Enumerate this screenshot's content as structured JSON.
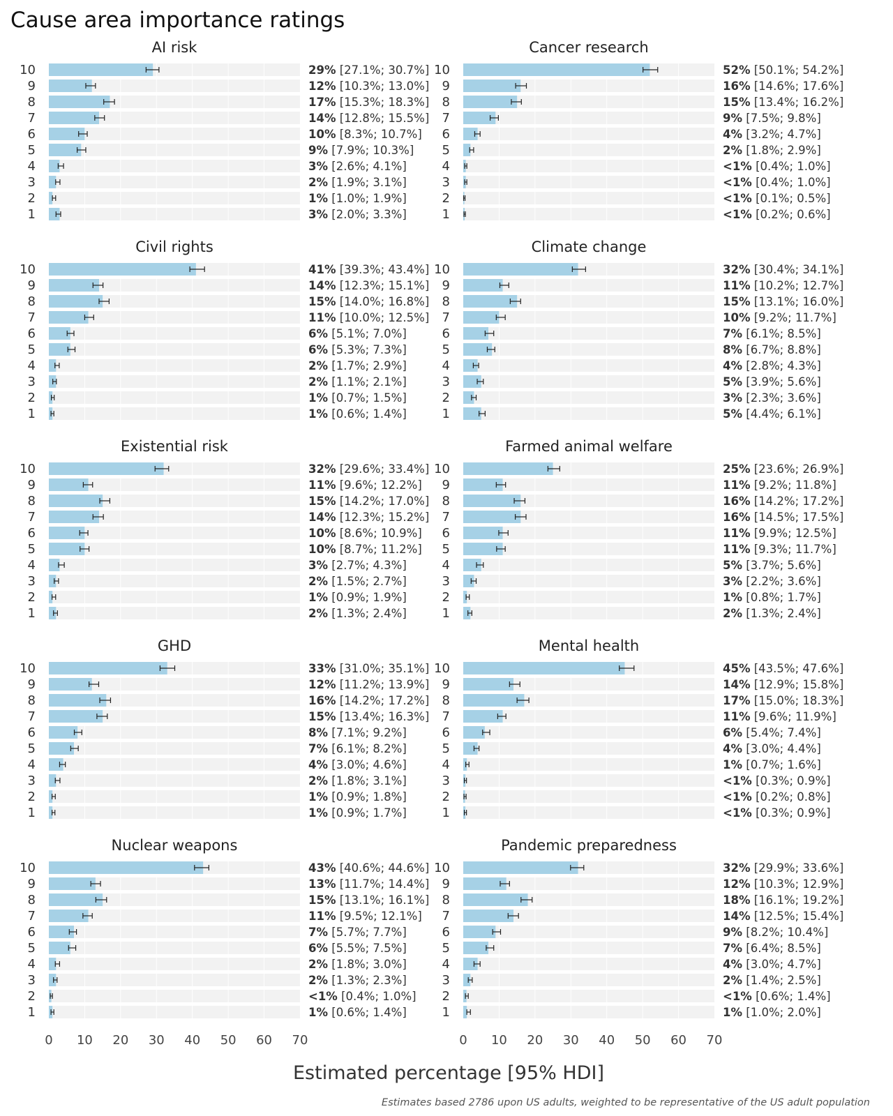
{
  "chart_data": {
    "type": "bar",
    "orientation": "horizontal",
    "title": "Cause area importance ratings",
    "xlabel": "Estimated percentage [95% HDI]",
    "caption": "Estimates based 2786 upon US adults, weighted to be representative of the US adult population",
    "xlim": [
      0,
      70
    ],
    "xticks": [
      "0",
      "10",
      "20",
      "30",
      "40",
      "50",
      "60",
      "70"
    ],
    "ratings": [
      "10",
      "9",
      "8",
      "7",
      "6",
      "5",
      "4",
      "3",
      "2",
      "1"
    ],
    "colors": {
      "bar": "#a6d1e6",
      "track": "#f2f2f2",
      "errorbar": "#222222"
    },
    "panels": [
      {
        "name": "AI risk",
        "values": [
          29,
          12,
          17,
          14,
          10,
          9,
          3,
          2,
          1,
          3
        ],
        "pct": [
          "29%",
          "12%",
          "17%",
          "14%",
          "10%",
          "9%",
          "3%",
          "2%",
          "1%",
          "3%"
        ],
        "ci": [
          "[27.1%; 30.7%]",
          "[10.3%; 13.0%]",
          "[15.3%; 18.3%]",
          "[12.8%; 15.5%]",
          "[8.3%; 10.7%]",
          "[7.9%; 10.3%]",
          "[2.6%; 4.1%]",
          "[1.9%; 3.1%]",
          "[1.0%; 1.9%]",
          "[2.0%; 3.3%]"
        ],
        "lo": [
          27.1,
          10.3,
          15.3,
          12.8,
          8.3,
          7.9,
          2.6,
          1.9,
          1.0,
          2.0
        ],
        "hi": [
          30.7,
          13.0,
          18.3,
          15.5,
          10.7,
          10.3,
          4.1,
          3.1,
          1.9,
          3.3
        ]
      },
      {
        "name": "Cancer research",
        "values": [
          52,
          16,
          15,
          9,
          4,
          2,
          0.7,
          0.7,
          0.3,
          0.4
        ],
        "pct": [
          "52%",
          "16%",
          "15%",
          "9%",
          "4%",
          "2%",
          "<1%",
          "<1%",
          "<1%",
          "<1%"
        ],
        "ci": [
          "[50.1%; 54.2%]",
          "[14.6%; 17.6%]",
          "[13.4%; 16.2%]",
          "[7.5%; 9.8%]",
          "[3.2%; 4.7%]",
          "[1.8%; 2.9%]",
          "[0.4%; 1.0%]",
          "[0.4%; 1.0%]",
          "[0.1%; 0.5%]",
          "[0.2%; 0.6%]"
        ],
        "lo": [
          50.1,
          14.6,
          13.4,
          7.5,
          3.2,
          1.8,
          0.4,
          0.4,
          0.1,
          0.2
        ],
        "hi": [
          54.2,
          17.6,
          16.2,
          9.8,
          4.7,
          2.9,
          1.0,
          1.0,
          0.5,
          0.6
        ]
      },
      {
        "name": "Civil rights",
        "values": [
          41,
          14,
          15,
          11,
          6,
          6,
          2,
          2,
          1,
          1
        ],
        "pct": [
          "41%",
          "14%",
          "15%",
          "11%",
          "6%",
          "6%",
          "2%",
          "2%",
          "1%",
          "1%"
        ],
        "ci": [
          "[39.3%; 43.4%]",
          "[12.3%; 15.1%]",
          "[14.0%; 16.8%]",
          "[10.0%; 12.5%]",
          "[5.1%; 7.0%]",
          "[5.3%; 7.3%]",
          "[1.7%; 2.9%]",
          "[1.1%; 2.1%]",
          "[0.7%; 1.5%]",
          "[0.6%; 1.4%]"
        ],
        "lo": [
          39.3,
          12.3,
          14.0,
          10.0,
          5.1,
          5.3,
          1.7,
          1.1,
          0.7,
          0.6
        ],
        "hi": [
          43.4,
          15.1,
          16.8,
          12.5,
          7.0,
          7.3,
          2.9,
          2.1,
          1.5,
          1.4
        ]
      },
      {
        "name": "Climate change",
        "values": [
          32,
          11,
          15,
          10,
          7,
          8,
          4,
          5,
          3,
          5
        ],
        "pct": [
          "32%",
          "11%",
          "15%",
          "10%",
          "7%",
          "8%",
          "4%",
          "5%",
          "3%",
          "5%"
        ],
        "ci": [
          "[30.4%; 34.1%]",
          "[10.2%; 12.7%]",
          "[13.1%; 16.0%]",
          "[9.2%; 11.7%]",
          "[6.1%; 8.5%]",
          "[6.7%; 8.8%]",
          "[2.8%; 4.3%]",
          "[3.9%; 5.6%]",
          "[2.3%; 3.6%]",
          "[4.4%; 6.1%]"
        ],
        "lo": [
          30.4,
          10.2,
          13.1,
          9.2,
          6.1,
          6.7,
          2.8,
          3.9,
          2.3,
          4.4
        ],
        "hi": [
          34.1,
          12.7,
          16.0,
          11.7,
          8.5,
          8.8,
          4.3,
          5.6,
          3.6,
          6.1
        ]
      },
      {
        "name": "Existential risk",
        "values": [
          32,
          11,
          15,
          14,
          10,
          10,
          3,
          2,
          1,
          2
        ],
        "pct": [
          "32%",
          "11%",
          "15%",
          "14%",
          "10%",
          "10%",
          "3%",
          "2%",
          "1%",
          "2%"
        ],
        "ci": [
          "[29.6%; 33.4%]",
          "[9.6%; 12.2%]",
          "[14.2%; 17.0%]",
          "[12.3%; 15.2%]",
          "[8.6%; 10.9%]",
          "[8.7%; 11.2%]",
          "[2.7%; 4.3%]",
          "[1.5%; 2.7%]",
          "[0.9%; 1.9%]",
          "[1.3%; 2.4%]"
        ],
        "lo": [
          29.6,
          9.6,
          14.2,
          12.3,
          8.6,
          8.7,
          2.7,
          1.5,
          0.9,
          1.3
        ],
        "hi": [
          33.4,
          12.2,
          17.0,
          15.2,
          10.9,
          11.2,
          4.3,
          2.7,
          1.9,
          2.4
        ]
      },
      {
        "name": "Farmed animal welfare",
        "values": [
          25,
          11,
          16,
          16,
          11,
          11,
          5,
          3,
          1,
          2
        ],
        "pct": [
          "25%",
          "11%",
          "16%",
          "16%",
          "11%",
          "11%",
          "5%",
          "3%",
          "1%",
          "2%"
        ],
        "ci": [
          "[23.6%; 26.9%]",
          "[9.2%; 11.8%]",
          "[14.2%; 17.2%]",
          "[14.5%; 17.5%]",
          "[9.9%; 12.5%]",
          "[9.3%; 11.7%]",
          "[3.7%; 5.6%]",
          "[2.2%; 3.6%]",
          "[0.8%; 1.7%]",
          "[1.3%; 2.4%]"
        ],
        "lo": [
          23.6,
          9.2,
          14.2,
          14.5,
          9.9,
          9.3,
          3.7,
          2.2,
          0.8,
          1.3
        ],
        "hi": [
          26.9,
          11.8,
          17.2,
          17.5,
          12.5,
          11.7,
          5.6,
          3.6,
          1.7,
          2.4
        ]
      },
      {
        "name": "GHD",
        "values": [
          33,
          12,
          16,
          15,
          8,
          7,
          4,
          2,
          1,
          1
        ],
        "pct": [
          "33%",
          "12%",
          "16%",
          "15%",
          "8%",
          "7%",
          "4%",
          "2%",
          "1%",
          "1%"
        ],
        "ci": [
          "[31.0%; 35.1%]",
          "[11.2%; 13.9%]",
          "[14.2%; 17.2%]",
          "[13.4%; 16.3%]",
          "[7.1%; 9.2%]",
          "[6.1%; 8.2%]",
          "[3.0%; 4.6%]",
          "[1.8%; 3.1%]",
          "[0.9%; 1.8%]",
          "[0.9%; 1.7%]"
        ],
        "lo": [
          31.0,
          11.2,
          14.2,
          13.4,
          7.1,
          6.1,
          3.0,
          1.8,
          0.9,
          0.9
        ],
        "hi": [
          35.1,
          13.9,
          17.2,
          16.3,
          9.2,
          8.2,
          4.6,
          3.1,
          1.8,
          1.7
        ]
      },
      {
        "name": "Mental health",
        "values": [
          45,
          14,
          17,
          11,
          6,
          4,
          1,
          0.6,
          0.5,
          0.6
        ],
        "pct": [
          "45%",
          "14%",
          "17%",
          "11%",
          "6%",
          "4%",
          "1%",
          "<1%",
          "<1%",
          "<1%"
        ],
        "ci": [
          "[43.5%; 47.6%]",
          "[12.9%; 15.8%]",
          "[15.0%; 18.3%]",
          "[9.6%; 11.9%]",
          "[5.4%; 7.4%]",
          "[3.0%; 4.4%]",
          "[0.7%; 1.6%]",
          "[0.3%; 0.9%]",
          "[0.2%; 0.8%]",
          "[0.3%; 0.9%]"
        ],
        "lo": [
          43.5,
          12.9,
          15.0,
          9.6,
          5.4,
          3.0,
          0.7,
          0.3,
          0.2,
          0.3
        ],
        "hi": [
          47.6,
          15.8,
          18.3,
          11.9,
          7.4,
          4.4,
          1.6,
          0.9,
          0.8,
          0.9
        ]
      },
      {
        "name": "Nuclear weapons",
        "values": [
          43,
          13,
          15,
          11,
          7,
          6,
          2,
          2,
          0.7,
          1
        ],
        "pct": [
          "43%",
          "13%",
          "15%",
          "11%",
          "7%",
          "6%",
          "2%",
          "2%",
          "<1%",
          "1%"
        ],
        "ci": [
          "[40.6%; 44.6%]",
          "[11.7%; 14.4%]",
          "[13.1%; 16.1%]",
          "[9.5%; 12.1%]",
          "[5.7%; 7.7%]",
          "[5.5%; 7.5%]",
          "[1.8%; 3.0%]",
          "[1.3%; 2.3%]",
          "[0.4%; 1.0%]",
          "[0.6%; 1.4%]"
        ],
        "lo": [
          40.6,
          11.7,
          13.1,
          9.5,
          5.7,
          5.5,
          1.8,
          1.3,
          0.4,
          0.6
        ],
        "hi": [
          44.6,
          14.4,
          16.1,
          12.1,
          7.7,
          7.5,
          3.0,
          2.3,
          1.0,
          1.4
        ]
      },
      {
        "name": "Pandemic preparedness",
        "values": [
          32,
          12,
          18,
          14,
          9,
          7,
          4,
          2,
          0.9,
          1
        ],
        "pct": [
          "32%",
          "12%",
          "18%",
          "14%",
          "9%",
          "7%",
          "4%",
          "2%",
          "<1%",
          "1%"
        ],
        "ci": [
          "[29.9%; 33.6%]",
          "[10.3%; 12.9%]",
          "[16.1%; 19.2%]",
          "[12.5%; 15.4%]",
          "[8.2%; 10.4%]",
          "[6.4%; 8.5%]",
          "[3.0%; 4.7%]",
          "[1.4%; 2.5%]",
          "[0.6%; 1.4%]",
          "[1.0%; 2.0%]"
        ],
        "lo": [
          29.9,
          10.3,
          16.1,
          12.5,
          8.2,
          6.4,
          3.0,
          1.4,
          0.6,
          1.0
        ],
        "hi": [
          33.6,
          12.9,
          19.2,
          15.4,
          10.4,
          8.5,
          4.7,
          2.5,
          1.4,
          2.0
        ]
      }
    ]
  }
}
